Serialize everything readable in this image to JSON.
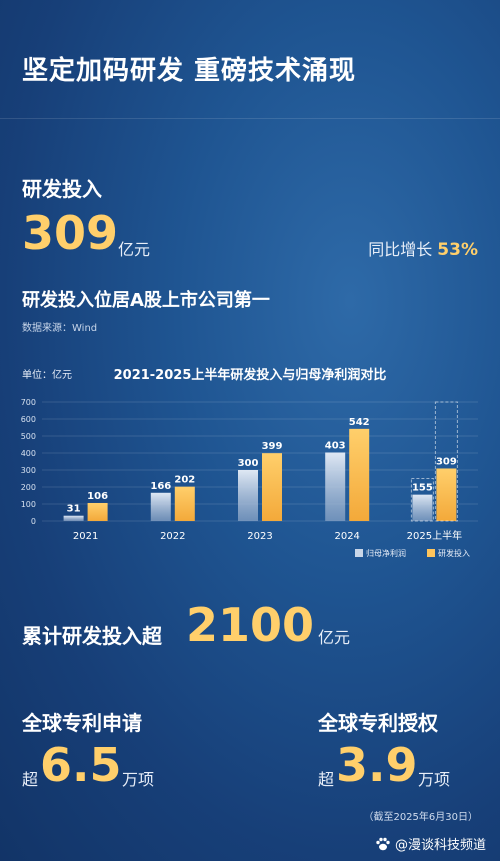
{
  "title": "坚定加码研发 重磅技术涌现",
  "rd": {
    "label": "研发投入",
    "value": "309",
    "unit": "亿元",
    "yoy_label": "同比增长",
    "yoy_value": "53%"
  },
  "rank_text": "研发投入位居A股上市公司第一",
  "source_text": "数据来源：Wind",
  "chart_unit": "单位：亿元",
  "chart_data": {
    "type": "bar",
    "title": "2021-2025上半年研发投入与归母净利润对比",
    "categories": [
      "2021",
      "2022",
      "2023",
      "2024",
      "2025上半年"
    ],
    "series": [
      {
        "name": "归母净利润",
        "values": [
          31,
          166,
          300,
          403,
          155
        ],
        "color": "#c9d6e8"
      },
      {
        "name": "研发投入",
        "values": [
          106,
          202,
          399,
          542,
          309
        ],
        "color": "#ffc55c"
      }
    ],
    "yticks": [
      0,
      100,
      200,
      300,
      400,
      500,
      600,
      700
    ],
    "ylim": [
      0,
      700
    ],
    "legend": "bottom-right",
    "grid": true
  },
  "cumulative": {
    "label": "累计研发投入超",
    "value": "2100",
    "unit": "亿元"
  },
  "patent_apply": {
    "label": "全球专利申请",
    "prefix": "超",
    "value": "6.5",
    "unit": "万项"
  },
  "patent_grant": {
    "label": "全球专利授权",
    "prefix": "超",
    "value": "3.9",
    "unit": "万项"
  },
  "footnote": "（截至2025年6月30日）",
  "watermark": "@漫谈科技频道"
}
